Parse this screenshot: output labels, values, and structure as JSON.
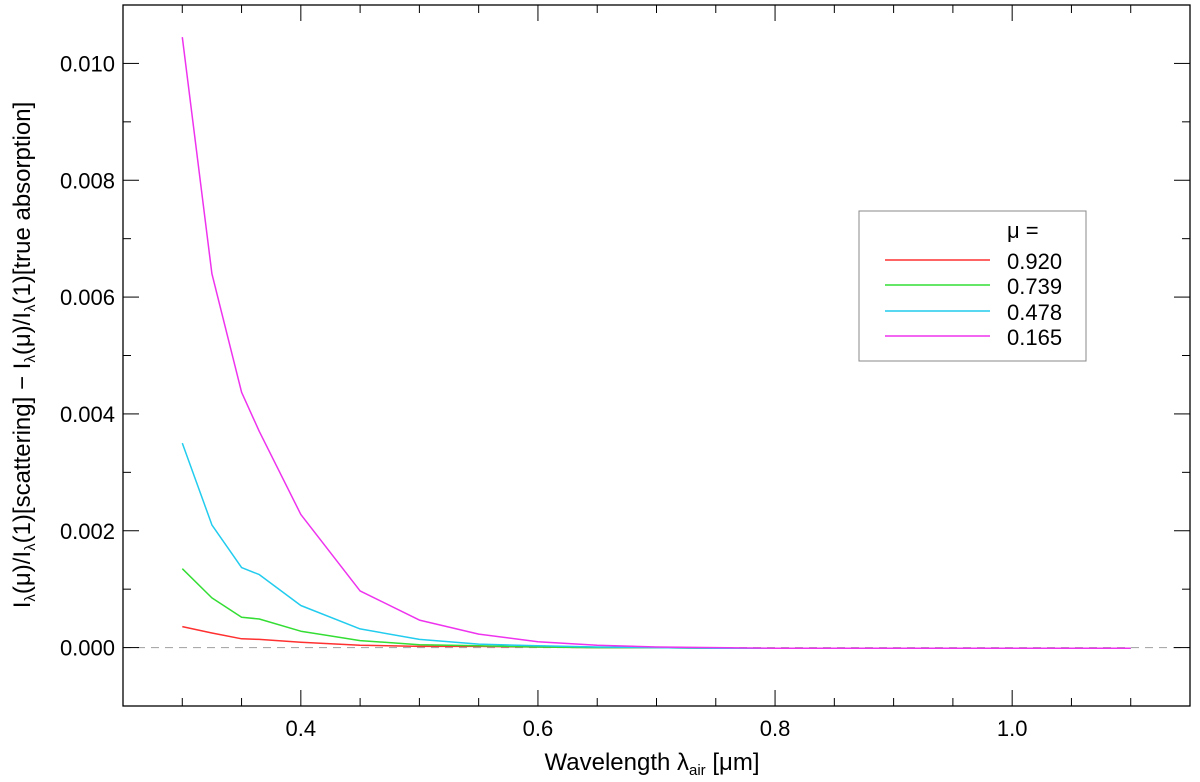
{
  "chart_data": {
    "type": "line",
    "title": "",
    "xlabel": "Wavelength λair [μm]",
    "xlabel_parts": {
      "main": "Wavelength λ",
      "sub": "air",
      "unit": " [μm]"
    },
    "ylabel": "Iλ(μ)/Iλ(1)[scattering] − Iλ(μ)/Iλ(1)[true absorption]",
    "ylabel_parts": [
      {
        "t": "I"
      },
      {
        "t": "λ",
        "sub": true
      },
      {
        "t": "(μ)/I"
      },
      {
        "t": "λ",
        "sub": true
      },
      {
        "t": "(1)[scattering] − I"
      },
      {
        "t": "λ",
        "sub": true
      },
      {
        "t": "(μ)/I"
      },
      {
        "t": "λ",
        "sub": true
      },
      {
        "t": "(1)[true absorption]"
      }
    ],
    "xlim": [
      0.25,
      1.15
    ],
    "ylim": [
      -0.001,
      0.011
    ],
    "xticks": [
      0.4,
      0.6,
      0.8,
      1.0
    ],
    "xtick_labels": [
      "0.4",
      "0.6",
      "0.8",
      "1.0"
    ],
    "xminor_step": 0.05,
    "yticks": [
      0.0,
      0.002,
      0.004,
      0.006,
      0.008,
      0.01
    ],
    "ytick_labels": [
      "0.000",
      "0.002",
      "0.004",
      "0.006",
      "0.008",
      "0.010"
    ],
    "yminor_step": 0.001,
    "zero_line": {
      "y": 0.0,
      "style": "dashed",
      "color": "#aaaaaa"
    },
    "grid": false,
    "legend": {
      "position": "right",
      "title": "μ ="
    },
    "x": [
      0.3,
      0.325,
      0.35,
      0.365,
      0.4,
      0.45,
      0.5,
      0.55,
      0.6,
      0.65,
      0.7,
      0.75,
      0.8,
      0.9,
      1.0,
      1.1
    ],
    "series": [
      {
        "name": "0.920",
        "color": "#ff3030",
        "values": [
          0.00036,
          0.00025,
          0.00015,
          0.00014,
          9e-05,
          4e-05,
          2e-05,
          2e-05,
          1e-05,
          0.0,
          0.0,
          -1e-05,
          -1e-05,
          -1e-05,
          -1e-05,
          -1e-05
        ]
      },
      {
        "name": "0.739",
        "color": "#33dd33",
        "values": [
          0.00135,
          0.00085,
          0.00052,
          0.00049,
          0.00028,
          0.00012,
          5e-05,
          3e-05,
          1e-05,
          0.0,
          0.0,
          -1e-05,
          -1e-05,
          -1e-05,
          -1e-05,
          -1e-05
        ]
      },
      {
        "name": "0.478",
        "color": "#22ccee",
        "values": [
          0.0035,
          0.0021,
          0.00137,
          0.00125,
          0.00072,
          0.00032,
          0.00014,
          6e-05,
          3e-05,
          1e-05,
          0.0,
          -1e-05,
          -1e-05,
          -1e-05,
          -1e-05,
          -1e-05
        ]
      },
      {
        "name": "0.165",
        "color": "#ee33ee",
        "values": [
          0.01045,
          0.0064,
          0.00437,
          0.0037,
          0.00228,
          0.00097,
          0.00047,
          0.00023,
          0.0001,
          4e-05,
          1e-05,
          0.0,
          -1e-05,
          -1e-05,
          -1e-05,
          -1e-05
        ]
      }
    ]
  }
}
